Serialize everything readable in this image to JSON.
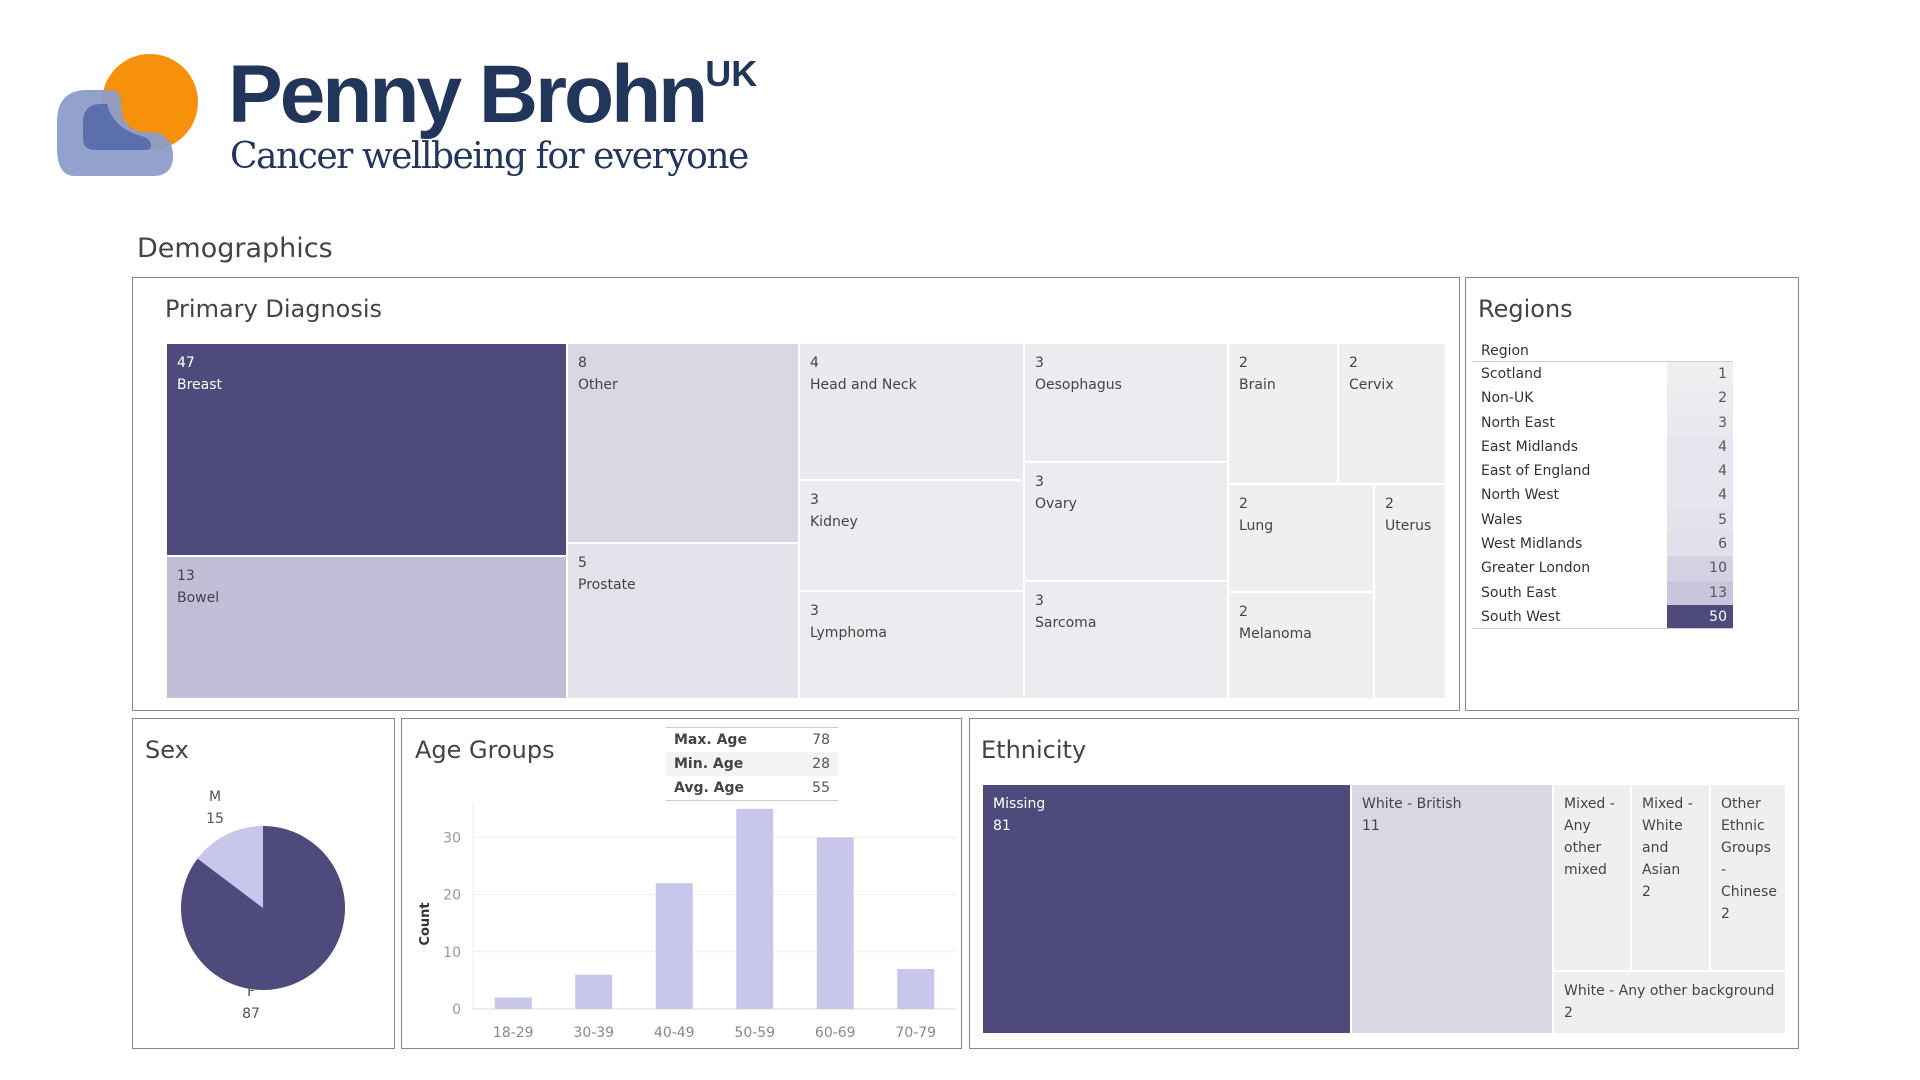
{
  "brand": {
    "name": "Penny Brohn",
    "suffix": "UK",
    "tagline": "Cancer wellbeing for everyone"
  },
  "section_title": "Demographics",
  "primary_diagnosis": {
    "title": "Primary Diagnosis",
    "items": [
      {
        "label": "Breast",
        "value": "47",
        "color": "#4e4a7c"
      },
      {
        "label": "Bowel",
        "value": "13",
        "color": "#c1bfd8"
      },
      {
        "label": "Other",
        "value": "8",
        "color": "#d9d7e4"
      },
      {
        "label": "Prostate",
        "value": "5",
        "color": "#e4e3ec"
      },
      {
        "label": "Head and Neck",
        "value": "4",
        "color": "#e9e9ef"
      },
      {
        "label": "Kidney",
        "value": "3",
        "color": "#ececf0"
      },
      {
        "label": "Lymphoma",
        "value": "3",
        "color": "#ececf0"
      },
      {
        "label": "Oesophagus",
        "value": "3",
        "color": "#ececf0"
      },
      {
        "label": "Ovary",
        "value": "3",
        "color": "#ececf0"
      },
      {
        "label": "Sarcoma",
        "value": "3",
        "color": "#ececf0"
      },
      {
        "label": "Brain",
        "value": "2",
        "color": "#efeff1"
      },
      {
        "label": "Cervix",
        "value": "2",
        "color": "#efeff1"
      },
      {
        "label": "Lung",
        "value": "2",
        "color": "#efeff1"
      },
      {
        "label": "Uterus",
        "value": "2",
        "color": "#efeff1"
      },
      {
        "label": "Melanoma",
        "value": "2",
        "color": "#efeff1"
      }
    ]
  },
  "regions": {
    "title": "Regions",
    "column_header": "Region",
    "rows": [
      {
        "name": "Scotland",
        "value": "1",
        "color": "#efeff1"
      },
      {
        "name": "Non-UK",
        "value": "2",
        "color": "#ececf0"
      },
      {
        "name": "North East",
        "value": "3",
        "color": "#e9e9ef"
      },
      {
        "name": "East Midlands",
        "value": "4",
        "color": "#e7e6ee"
      },
      {
        "name": "East of England",
        "value": "4",
        "color": "#e7e6ee"
      },
      {
        "name": "North West",
        "value": "4",
        "color": "#e7e6ee"
      },
      {
        "name": "Wales",
        "value": "5",
        "color": "#e4e3ec"
      },
      {
        "name": "West Midlands",
        "value": "6",
        "color": "#e2e1eb"
      },
      {
        "name": "Greater London",
        "value": "10",
        "color": "#d3d1e2"
      },
      {
        "name": "South East",
        "value": "13",
        "color": "#c8c6dc"
      },
      {
        "name": "South West",
        "value": "50",
        "color": "#4e4a7c"
      }
    ]
  },
  "sex": {
    "title": "Sex",
    "slices": [
      {
        "label": "M",
        "value": 15,
        "color": "#c9c6ec"
      },
      {
        "label": "F",
        "value": 87,
        "color": "#4e4a7c"
      }
    ]
  },
  "age": {
    "title": "Age Groups",
    "stats": [
      {
        "label": "Max. Age",
        "value": "78"
      },
      {
        "label": "Min. Age",
        "value": "28"
      },
      {
        "label": "Avg. Age",
        "value": "55"
      }
    ]
  },
  "chart_data": {
    "type": "bar",
    "title": "Age Groups",
    "xlabel": "",
    "ylabel": "Count",
    "categories": [
      "18-29",
      "30-39",
      "40-49",
      "50-59",
      "60-69",
      "70-79"
    ],
    "values": [
      2,
      6,
      22,
      35,
      30,
      7
    ],
    "ylim": [
      0,
      37
    ],
    "yticks": [
      0,
      10,
      20,
      30
    ],
    "bar_color": "#c9c6ec",
    "grid": true
  },
  "ethnicity": {
    "title": "Ethnicity",
    "items": [
      {
        "label": "Missing",
        "value": "81",
        "color": "#4e4a7c"
      },
      {
        "label": "White - British",
        "value": "11",
        "color": "#d9d7e4"
      },
      {
        "label": "Mixed - Any other mixed",
        "value": "",
        "color": "#efefef"
      },
      {
        "label": "Mixed - White and Asian",
        "value": "2",
        "color": "#efefef"
      },
      {
        "label": "Other Ethnic Groups - Chinese",
        "value": "2",
        "color": "#efefef"
      },
      {
        "label": "White - Any other background",
        "value": "2",
        "color": "#efefef"
      }
    ]
  }
}
